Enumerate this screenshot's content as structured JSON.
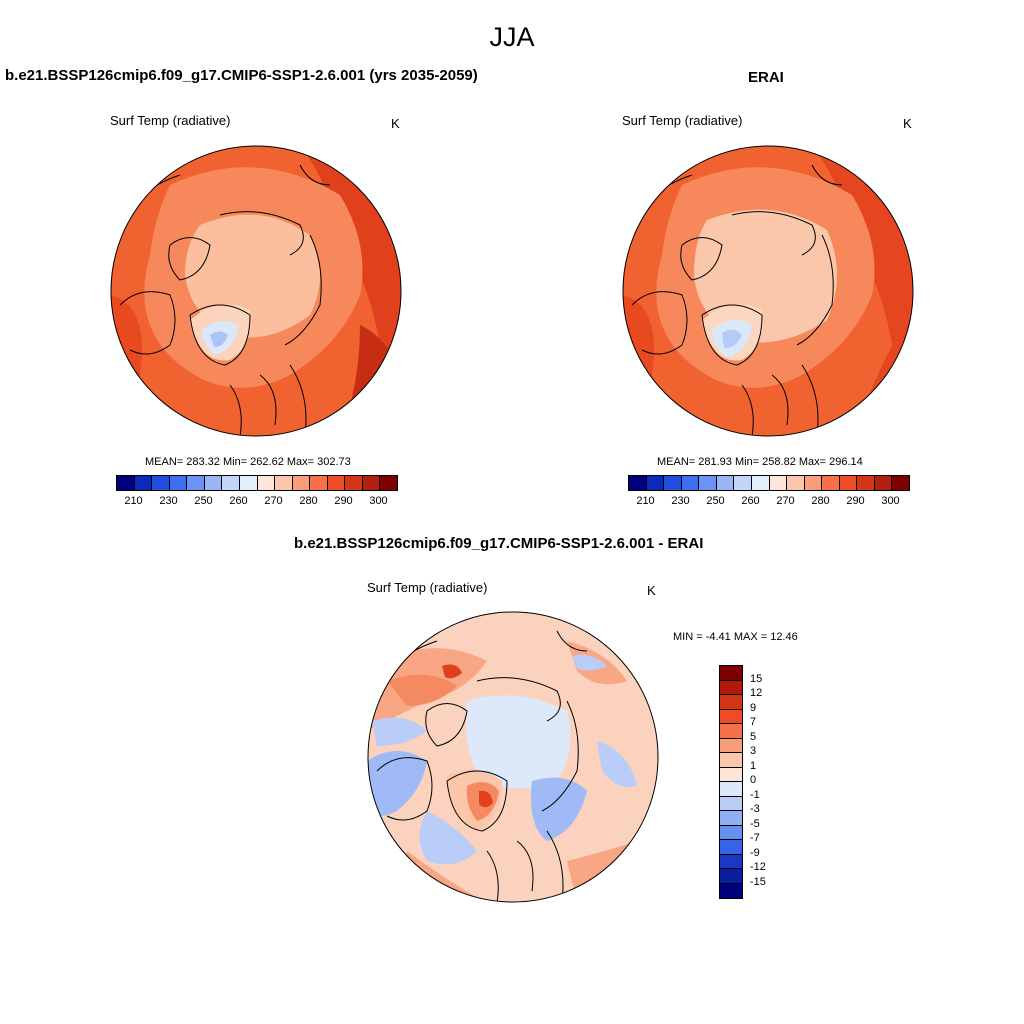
{
  "season": "JJA",
  "top_left": {
    "title": "b.e21.BSSP126cmip6.f09_g17.CMIP6-SSP1-2.6.001 (yrs 2035-2059)",
    "variable": "Surf Temp (radiative)",
    "units": "K",
    "stats": "MEAN= 283.32  Min= 262.62  Max= 302.73"
  },
  "top_right": {
    "title": "ERAI",
    "variable": "Surf Temp (radiative)",
    "units": "K",
    "stats": "MEAN= 281.93  Min= 258.82  Max= 296.14"
  },
  "abs_colorbar": {
    "labels": [
      "210",
      "230",
      "250",
      "260",
      "270",
      "280",
      "290",
      "300"
    ],
    "colors": [
      "#00007f",
      "#0a2bb8",
      "#1f4de0",
      "#3d6ff0",
      "#6b93f5",
      "#98b5f8",
      "#c3d5fb",
      "#e4eefc",
      "#fde6d8",
      "#fcc6ab",
      "#fa9d7a",
      "#f67149",
      "#ee4b26",
      "#d4361a",
      "#b22010",
      "#7f0000"
    ]
  },
  "bottom": {
    "title": "b.e21.BSSP126cmip6.f09_g17.CMIP6-SSP1-2.6.001 - ERAI",
    "variable": "Surf Temp (radiative)",
    "units": "K",
    "stats": "MIN =  -4.41 MAX =  12.46"
  },
  "diff_colorbar": {
    "labels": [
      "15",
      "12",
      "9",
      "7",
      "5",
      "3",
      "1",
      "0",
      "-1",
      "-3",
      "-5",
      "-7",
      "-9",
      "-12",
      "-15"
    ],
    "colors": [
      "#7f0000",
      "#b0190c",
      "#d43515",
      "#ee4b26",
      "#f67149",
      "#fa9d7a",
      "#fcc6ab",
      "#fde6d8",
      "#dde8fb",
      "#b8cdf8",
      "#8fb0f5",
      "#6690f0",
      "#3564e8",
      "#1a38c8",
      "#0a1fa0",
      "#00007f"
    ]
  }
}
